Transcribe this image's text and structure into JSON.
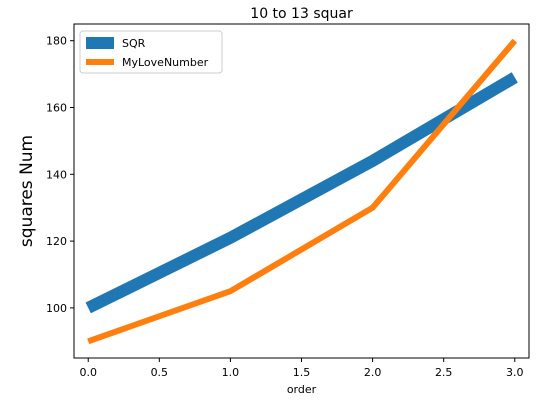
{
  "chart_data": {
    "type": "line",
    "title": "10 to 13 squar",
    "xlabel": "order",
    "ylabel": "squares Num",
    "x": [
      0,
      1,
      2,
      3
    ],
    "xlim": [
      -0.1,
      3.1
    ],
    "ylim": [
      85,
      185
    ],
    "xticks": [
      0.0,
      0.5,
      1.0,
      1.5,
      2.0,
      2.5,
      3.0
    ],
    "xtick_labels": [
      "0.0",
      "0.5",
      "1.0",
      "1.5",
      "2.0",
      "2.5",
      "3.0"
    ],
    "yticks": [
      100,
      120,
      140,
      160,
      180
    ],
    "ytick_labels": [
      "100",
      "120",
      "140",
      "160",
      "180"
    ],
    "grid": false,
    "legend_position": "upper-left",
    "series": [
      {
        "name": "SQR",
        "values": [
          100,
          121,
          144,
          169
        ],
        "color": "#1f77b4",
        "linewidth": "thick"
      },
      {
        "name": "MyLoveNumber",
        "values": [
          90,
          105,
          130,
          180
        ],
        "color": "#ff7f0e",
        "linewidth": "medium"
      }
    ]
  }
}
